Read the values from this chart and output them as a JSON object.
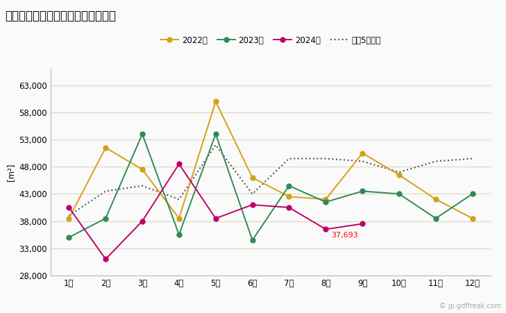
{
  "title": "宮崎県の居住用建築物の着工床面積",
  "ylabel": "[m²]",
  "months": [
    "1月",
    "2月",
    "3月",
    "4月",
    "5月",
    "6月",
    "7月",
    "8月",
    "9月",
    "10月",
    "11月",
    "12月"
  ],
  "series_2022": [
    38500,
    51500,
    47500,
    38500,
    60000,
    46000,
    42500,
    42000,
    50500,
    46500,
    42000,
    38500
  ],
  "series_2023": [
    35000,
    38500,
    54000,
    35500,
    54000,
    34500,
    44500,
    41500,
    43500,
    43000,
    38500,
    43000
  ],
  "series_2024": [
    40500,
    31000,
    38000,
    48500,
    38500,
    41000,
    40500,
    36500,
    37500,
    null,
    null,
    null
  ],
  "series_avg": [
    39000,
    43500,
    44500,
    42000,
    52000,
    43000,
    49500,
    49500,
    49000,
    47000,
    49000,
    49500
  ],
  "legend_2022": "2022年",
  "legend_2023": "2023年",
  "legend_2024": "2024年",
  "legend_avg": "過去5年平均",
  "annotation_value": "37,693",
  "annotation_xi": 7,
  "ylim": [
    28000,
    66000
  ],
  "yticks": [
    28000,
    33000,
    38000,
    43000,
    48000,
    53000,
    58000,
    63000
  ],
  "color_2022": "#D4A017",
  "color_2023": "#2E8B57",
  "color_2024": "#C0006A",
  "color_avg": "#555555",
  "bg_color": "#FAFAFA",
  "grid_color": "#D8D8C0",
  "title_fontsize": 12,
  "axis_fontsize": 8.5,
  "legend_fontsize": 8.5,
  "watermark": "© jp.gdffreak.com"
}
